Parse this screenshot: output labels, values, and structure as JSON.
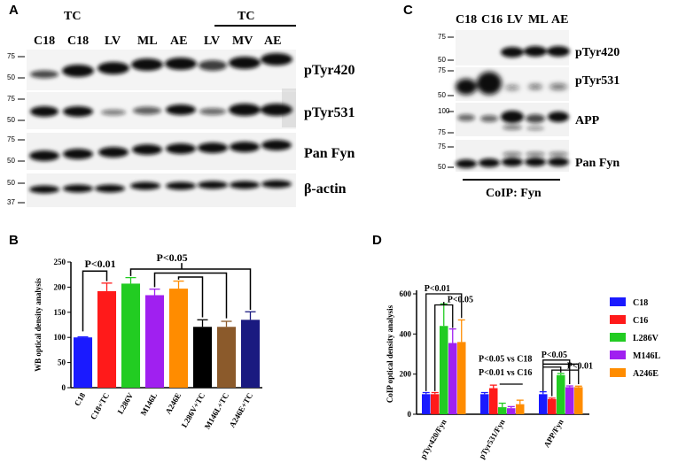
{
  "panels": {
    "a": "A",
    "b": "B",
    "c": "C",
    "d": "D"
  },
  "blotA": {
    "group_label_1": "TC",
    "group_label_2": "TC",
    "lanes": [
      "C18",
      "C18",
      "LV",
      "ML",
      "AE",
      "LV",
      "MV",
      "AE"
    ],
    "rows": [
      {
        "label": "pTyr420",
        "markers": [
          "75",
          "50"
        ]
      },
      {
        "label": "pTyr531",
        "markers": [
          "75",
          "50"
        ]
      },
      {
        "label": "Pan Fyn",
        "markers": [
          "75",
          "50"
        ]
      },
      {
        "label": "β-actin",
        "markers": [
          "50",
          "37"
        ]
      }
    ]
  },
  "blotC": {
    "lanes": [
      "C18",
      "C16",
      "LV",
      "ML",
      "AE"
    ],
    "rows": [
      {
        "label": "pTyr420",
        "markers": [
          "75",
          "50"
        ]
      },
      {
        "label": "pTyr531",
        "markers": [
          "75",
          "50"
        ]
      },
      {
        "label": "APP",
        "markers": [
          "100",
          "75"
        ]
      },
      {
        "label": "Pan Fyn",
        "markers": [
          "75",
          "50"
        ]
      }
    ],
    "footer": "CoIP: Fyn"
  },
  "chart_data": [
    {
      "type": "bar",
      "categories": [
        "C18",
        "C18+TC",
        "L286V",
        "M146L",
        "A246E",
        "L286V+TC",
        "M146L+TC",
        "A246E+TC"
      ],
      "values": [
        100,
        192,
        207,
        184,
        197,
        121,
        121,
        135
      ],
      "errors": [
        1,
        16,
        12,
        12,
        15,
        14,
        11,
        16
      ],
      "colors": [
        "#1a1aff",
        "#ff1a1a",
        "#22cc22",
        "#a020f0",
        "#ff8c00",
        "#000000",
        "#8b5a2b",
        "#1a1a80"
      ],
      "ylabel": "WB optical density analysis",
      "ylim": [
        0,
        250
      ],
      "yticks": [
        0,
        50,
        100,
        150,
        200,
        250
      ],
      "annotations": [
        "P<0.01",
        "P<0.05"
      ]
    },
    {
      "type": "bar",
      "categories": [
        "pTyr420/Fyn",
        "pTyr531/Fyn",
        "APP/Fyn"
      ],
      "series": [
        {
          "name": "C18",
          "color": "#1a1aff",
          "values": [
            100,
            100,
            100
          ],
          "errors": [
            8,
            8,
            12
          ]
        },
        {
          "name": "C16",
          "color": "#ff1a1a",
          "values": [
            100,
            130,
            75
          ],
          "errors": [
            8,
            15,
            5
          ]
        },
        {
          "name": "L286V",
          "color": "#22cc22",
          "values": [
            440,
            35,
            195
          ],
          "errors": [
            110,
            20,
            8
          ]
        },
        {
          "name": "M146L",
          "color": "#a020f0",
          "values": [
            355,
            30,
            135
          ],
          "errors": [
            70,
            8,
            6
          ]
        },
        {
          "name": "A246E",
          "color": "#ff8c00",
          "values": [
            360,
            50,
            135
          ],
          "errors": [
            110,
            20,
            5
          ]
        }
      ],
      "ylabel": "CoIP optical density analysis",
      "ylim": [
        0,
        600
      ],
      "yticks": [
        0,
        200,
        400,
        600
      ],
      "annotations": [
        "P<0.01",
        "P<0.05",
        "P<0.05 vs C18",
        "P<0.01 vs C16",
        "P<0.05",
        "P<0.01"
      ]
    }
  ]
}
